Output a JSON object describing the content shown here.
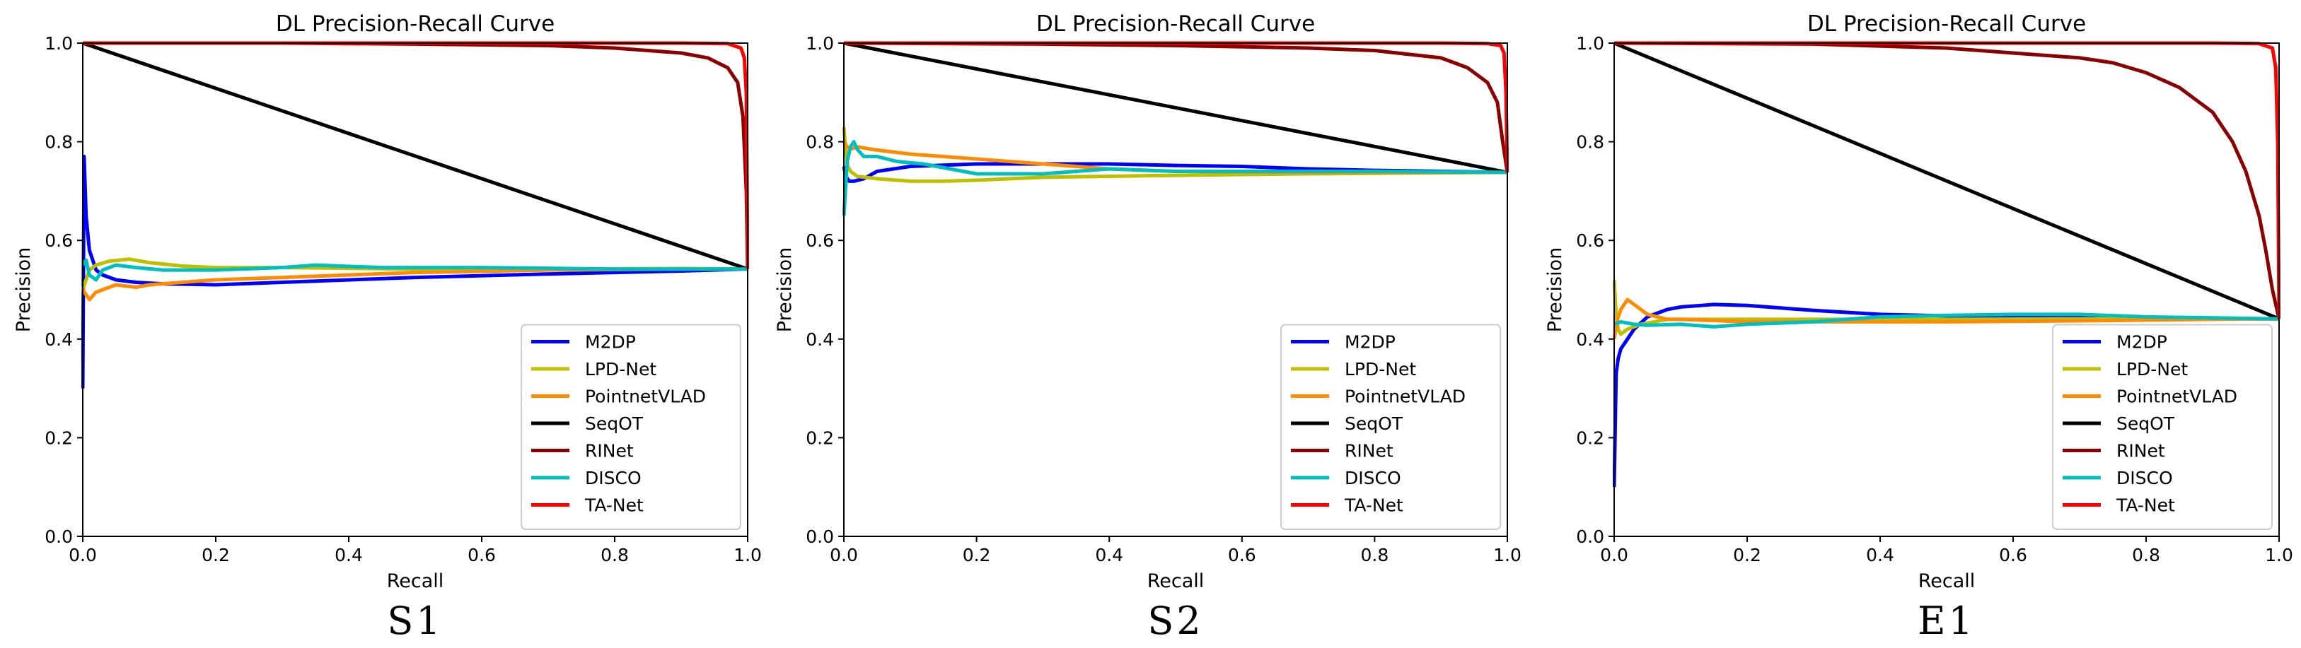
{
  "chart_data": [
    {
      "type": "line",
      "title": "DL Precision-Recall Curve",
      "xlabel": "Recall",
      "ylabel": "Precision",
      "caption": "S1",
      "xlim": [
        0,
        1
      ],
      "ylim": [
        0,
        1
      ],
      "xticks": [
        "0.0",
        "0.2",
        "0.4",
        "0.6",
        "0.8",
        "1.0"
      ],
      "yticks": [
        "0.0",
        "0.2",
        "0.4",
        "0.6",
        "0.8",
        "1.0"
      ],
      "legend_position": "lower-right",
      "series": [
        {
          "name": "M2DP",
          "color": "#0000ff",
          "x": [
            0,
            0.002,
            0.005,
            0.01,
            0.02,
            0.03,
            0.05,
            0.08,
            0.12,
            0.2,
            0.3,
            0.5,
            0.7,
            0.9,
            1.0
          ],
          "y": [
            0.3,
            0.77,
            0.65,
            0.58,
            0.54,
            0.53,
            0.52,
            0.515,
            0.512,
            0.51,
            0.515,
            0.525,
            0.532,
            0.538,
            0.542
          ]
        },
        {
          "name": "LPD-Net",
          "color": "#bfbf00",
          "x": [
            0,
            0.005,
            0.01,
            0.02,
            0.04,
            0.07,
            0.1,
            0.15,
            0.2,
            0.3,
            0.5,
            0.7,
            0.9,
            1.0
          ],
          "y": [
            0.5,
            0.52,
            0.54,
            0.55,
            0.558,
            0.562,
            0.555,
            0.548,
            0.545,
            0.545,
            0.542,
            0.542,
            0.543,
            0.542
          ]
        },
        {
          "name": "PointnetVLAD",
          "color": "#ff8c00",
          "x": [
            0,
            0.005,
            0.01,
            0.02,
            0.03,
            0.05,
            0.08,
            0.1,
            0.15,
            0.2,
            0.3,
            0.5,
            0.7,
            0.9,
            1.0
          ],
          "y": [
            0.5,
            0.49,
            0.48,
            0.495,
            0.5,
            0.51,
            0.505,
            0.51,
            0.515,
            0.52,
            0.525,
            0.535,
            0.54,
            0.542,
            0.542
          ]
        },
        {
          "name": "SeqOT",
          "color": "#000000",
          "x": [
            0,
            1.0
          ],
          "y": [
            1.0,
            0.542
          ]
        },
        {
          "name": "RINet",
          "color": "#8b0000",
          "x": [
            0,
            0.3,
            0.5,
            0.7,
            0.8,
            0.9,
            0.94,
            0.97,
            0.985,
            0.993,
            0.998,
            1.0
          ],
          "y": [
            1.0,
            1.0,
            0.998,
            0.995,
            0.99,
            0.98,
            0.97,
            0.95,
            0.92,
            0.85,
            0.7,
            0.542
          ]
        },
        {
          "name": "DISCO",
          "color": "#00bfbf",
          "x": [
            0,
            0.005,
            0.01,
            0.02,
            0.03,
            0.05,
            0.08,
            0.12,
            0.2,
            0.3,
            0.35,
            0.45,
            0.6,
            0.8,
            1.0
          ],
          "y": [
            0.55,
            0.56,
            0.53,
            0.52,
            0.54,
            0.55,
            0.545,
            0.54,
            0.54,
            0.545,
            0.55,
            0.545,
            0.545,
            0.542,
            0.542
          ]
        },
        {
          "name": "TA-Net",
          "color": "#ff0000",
          "x": [
            0,
            0.5,
            0.9,
            0.97,
            0.99,
            0.995,
            0.998,
            1.0
          ],
          "y": [
            1.0,
            1.0,
            1.0,
            0.999,
            0.99,
            0.97,
            0.9,
            0.542
          ]
        }
      ]
    },
    {
      "type": "line",
      "title": "DL Precision-Recall Curve",
      "xlabel": "Recall",
      "ylabel": "Precision",
      "caption": "S2",
      "xlim": [
        0,
        1
      ],
      "ylim": [
        0,
        1
      ],
      "xticks": [
        "0.0",
        "0.2",
        "0.4",
        "0.6",
        "0.8",
        "1.0"
      ],
      "yticks": [
        "0.0",
        "0.2",
        "0.4",
        "0.6",
        "0.8",
        "1.0"
      ],
      "legend_position": "lower-right",
      "series": [
        {
          "name": "M2DP",
          "color": "#0000ff",
          "x": [
            0,
            0.003,
            0.008,
            0.015,
            0.03,
            0.05,
            0.1,
            0.2,
            0.3,
            0.4,
            0.5,
            0.6,
            0.7,
            0.8,
            0.9,
            1.0
          ],
          "y": [
            0.75,
            0.73,
            0.72,
            0.72,
            0.725,
            0.74,
            0.75,
            0.755,
            0.755,
            0.755,
            0.752,
            0.75,
            0.745,
            0.742,
            0.74,
            0.738
          ]
        },
        {
          "name": "LPD-Net",
          "color": "#bfbf00",
          "x": [
            0,
            0.003,
            0.006,
            0.01,
            0.02,
            0.05,
            0.1,
            0.15,
            0.2,
            0.3,
            0.4,
            0.5,
            0.7,
            0.9,
            1.0
          ],
          "y": [
            0.83,
            0.78,
            0.75,
            0.74,
            0.73,
            0.725,
            0.72,
            0.72,
            0.722,
            0.728,
            0.73,
            0.732,
            0.735,
            0.737,
            0.738
          ]
        },
        {
          "name": "PointnetVLAD",
          "color": "#ff8c00",
          "x": [
            0,
            0.005,
            0.01,
            0.02,
            0.04,
            0.07,
            0.1,
            0.15,
            0.2,
            0.3,
            0.4,
            0.5,
            0.7,
            0.9,
            1.0
          ],
          "y": [
            0.8,
            0.79,
            0.785,
            0.79,
            0.785,
            0.78,
            0.775,
            0.77,
            0.765,
            0.755,
            0.745,
            0.74,
            0.738,
            0.738,
            0.738
          ]
        },
        {
          "name": "SeqOT",
          "color": "#000000",
          "x": [
            0,
            1.0
          ],
          "y": [
            1.0,
            0.738
          ]
        },
        {
          "name": "RINet",
          "color": "#8b0000",
          "x": [
            0,
            0.3,
            0.5,
            0.7,
            0.8,
            0.9,
            0.94,
            0.97,
            0.985,
            0.993,
            1.0
          ],
          "y": [
            1.0,
            0.998,
            0.995,
            0.99,
            0.985,
            0.97,
            0.95,
            0.92,
            0.88,
            0.8,
            0.738
          ]
        },
        {
          "name": "DISCO",
          "color": "#00bfbf",
          "x": [
            0,
            0.005,
            0.01,
            0.015,
            0.02,
            0.03,
            0.05,
            0.08,
            0.12,
            0.2,
            0.3,
            0.4,
            0.5,
            0.6,
            0.8,
            1.0
          ],
          "y": [
            0.65,
            0.76,
            0.79,
            0.8,
            0.785,
            0.77,
            0.77,
            0.76,
            0.755,
            0.735,
            0.735,
            0.745,
            0.74,
            0.74,
            0.74,
            0.738
          ]
        },
        {
          "name": "TA-Net",
          "color": "#ff0000",
          "x": [
            0,
            0.5,
            0.9,
            0.97,
            0.99,
            0.995,
            0.998,
            1.0
          ],
          "y": [
            1.0,
            1.0,
            1.0,
            0.999,
            0.995,
            0.98,
            0.9,
            0.738
          ]
        }
      ]
    },
    {
      "type": "line",
      "title": "DL Precision-Recall Curve",
      "xlabel": "Recall",
      "ylabel": "Precision",
      "caption": "E1",
      "xlim": [
        0,
        1
      ],
      "ylim": [
        0,
        1
      ],
      "xticks": [
        "0.0",
        "0.2",
        "0.4",
        "0.6",
        "0.8",
        "1.0"
      ],
      "yticks": [
        "0.0",
        "0.2",
        "0.4",
        "0.6",
        "0.8",
        "1.0"
      ],
      "legend_position": "lower-right",
      "series": [
        {
          "name": "M2DP",
          "color": "#0000ff",
          "x": [
            0,
            0.003,
            0.006,
            0.01,
            0.02,
            0.03,
            0.05,
            0.08,
            0.1,
            0.15,
            0.2,
            0.25,
            0.3,
            0.4,
            0.5,
            0.7,
            0.9,
            1.0
          ],
          "y": [
            0.1,
            0.33,
            0.36,
            0.38,
            0.4,
            0.42,
            0.445,
            0.46,
            0.465,
            0.47,
            0.468,
            0.463,
            0.458,
            0.45,
            0.447,
            0.444,
            0.442,
            0.441
          ]
        },
        {
          "name": "LPD-Net",
          "color": "#bfbf00",
          "x": [
            0,
            0.003,
            0.006,
            0.01,
            0.02,
            0.04,
            0.08,
            0.12,
            0.2,
            0.3,
            0.5,
            0.7,
            0.9,
            1.0
          ],
          "y": [
            0.52,
            0.45,
            0.42,
            0.41,
            0.42,
            0.43,
            0.44,
            0.44,
            0.44,
            0.44,
            0.44,
            0.441,
            0.441,
            0.441
          ]
        },
        {
          "name": "PointnetVLAD",
          "color": "#ff8c00",
          "x": [
            0,
            0.005,
            0.01,
            0.02,
            0.03,
            0.05,
            0.08,
            0.1,
            0.2,
            0.3,
            0.5,
            0.7,
            0.9,
            1.0
          ],
          "y": [
            0.4,
            0.44,
            0.46,
            0.48,
            0.47,
            0.45,
            0.44,
            0.44,
            0.435,
            0.435,
            0.435,
            0.437,
            0.44,
            0.441
          ]
        },
        {
          "name": "SeqOT",
          "color": "#000000",
          "x": [
            0,
            1.0
          ],
          "y": [
            1.0,
            0.441
          ]
        },
        {
          "name": "RINet",
          "color": "#8b0000",
          "x": [
            0,
            0.3,
            0.5,
            0.6,
            0.7,
            0.75,
            0.8,
            0.85,
            0.9,
            0.93,
            0.95,
            0.97,
            0.98,
            0.99,
            1.0
          ],
          "y": [
            1.0,
            0.998,
            0.99,
            0.98,
            0.97,
            0.96,
            0.94,
            0.91,
            0.86,
            0.8,
            0.74,
            0.65,
            0.58,
            0.5,
            0.441
          ]
        },
        {
          "name": "DISCO",
          "color": "#00bfbf",
          "x": [
            0,
            0.01,
            0.03,
            0.05,
            0.1,
            0.15,
            0.2,
            0.3,
            0.4,
            0.5,
            0.6,
            0.7,
            0.8,
            0.9,
            1.0
          ],
          "y": [
            0.43,
            0.435,
            0.43,
            0.428,
            0.43,
            0.425,
            0.43,
            0.435,
            0.445,
            0.448,
            0.45,
            0.45,
            0.445,
            0.443,
            0.441
          ]
        },
        {
          "name": "TA-Net",
          "color": "#ff0000",
          "x": [
            0,
            0.5,
            0.9,
            0.97,
            0.99,
            0.995,
            0.998,
            1.0
          ],
          "y": [
            1.0,
            1.0,
            1.0,
            0.999,
            0.99,
            0.95,
            0.8,
            0.441
          ]
        }
      ]
    }
  ]
}
